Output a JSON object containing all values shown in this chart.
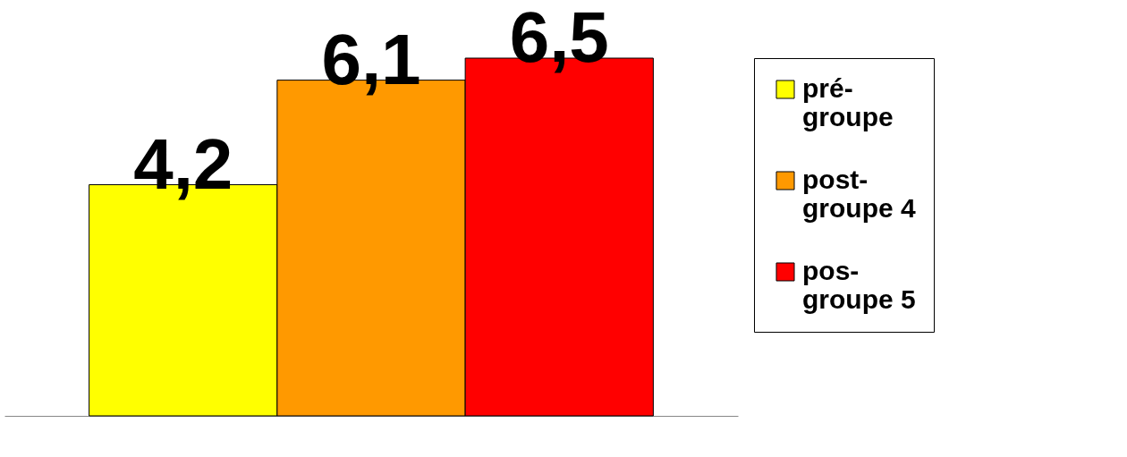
{
  "chart_data": {
    "type": "bar",
    "categories": [
      null
    ],
    "series": [
      {
        "name": "pré-groupe",
        "color": "#ffff00",
        "values": [
          4.2
        ],
        "value_labels": [
          "4,2"
        ]
      },
      {
        "name": "post-groupe 4",
        "color": "#ff9900",
        "values": [
          6.1
        ],
        "value_labels": [
          "6,1"
        ]
      },
      {
        "name": "pos-groupe 5",
        "color": "#ff0000",
        "values": [
          6.5
        ],
        "value_labels": [
          "6,5"
        ]
      }
    ],
    "legend": "right",
    "grid": false
  }
}
